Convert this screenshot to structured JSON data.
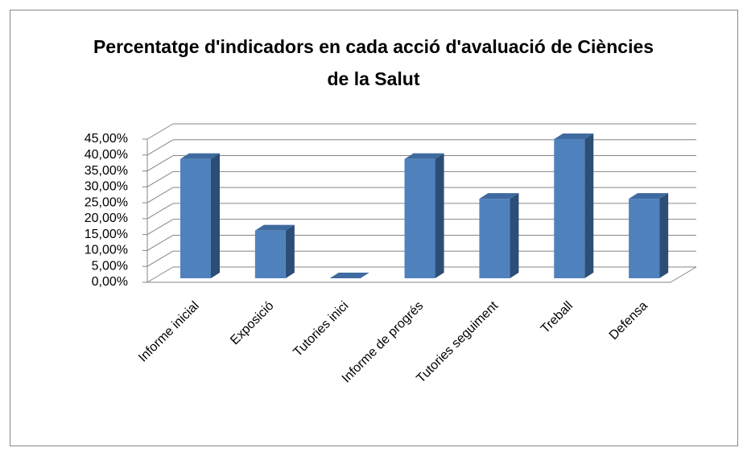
{
  "chart_data": {
    "type": "bar3d",
    "title": "Percentatge d'indicadors en cada acció d'avaluació de Ciències de la Salut",
    "categories": [
      "Informe inicial",
      "Exposició",
      "Tutories inici",
      "Informe de progrés",
      "Tutories seguiment",
      "Treball",
      "Defensa"
    ],
    "values": [
      37.5,
      15,
      0,
      37.5,
      25,
      43.75,
      25
    ],
    "color": "#4f81bd",
    "ylim": [
      0,
      45
    ],
    "yticks": [
      {
        "value": 0,
        "label": "0,00%"
      },
      {
        "value": 5,
        "label": "5,00%"
      },
      {
        "value": 10,
        "label": "10,00%"
      },
      {
        "value": 15,
        "label": "15,00%"
      },
      {
        "value": 20,
        "label": "20,00%"
      },
      {
        "value": 25,
        "label": "25,00%"
      },
      {
        "value": 30,
        "label": "30,00%"
      },
      {
        "value": 35,
        "label": "35,00%"
      },
      {
        "value": 40,
        "label": "40,00%"
      },
      {
        "value": 45,
        "label": "45,00%"
      }
    ],
    "grid": true
  }
}
